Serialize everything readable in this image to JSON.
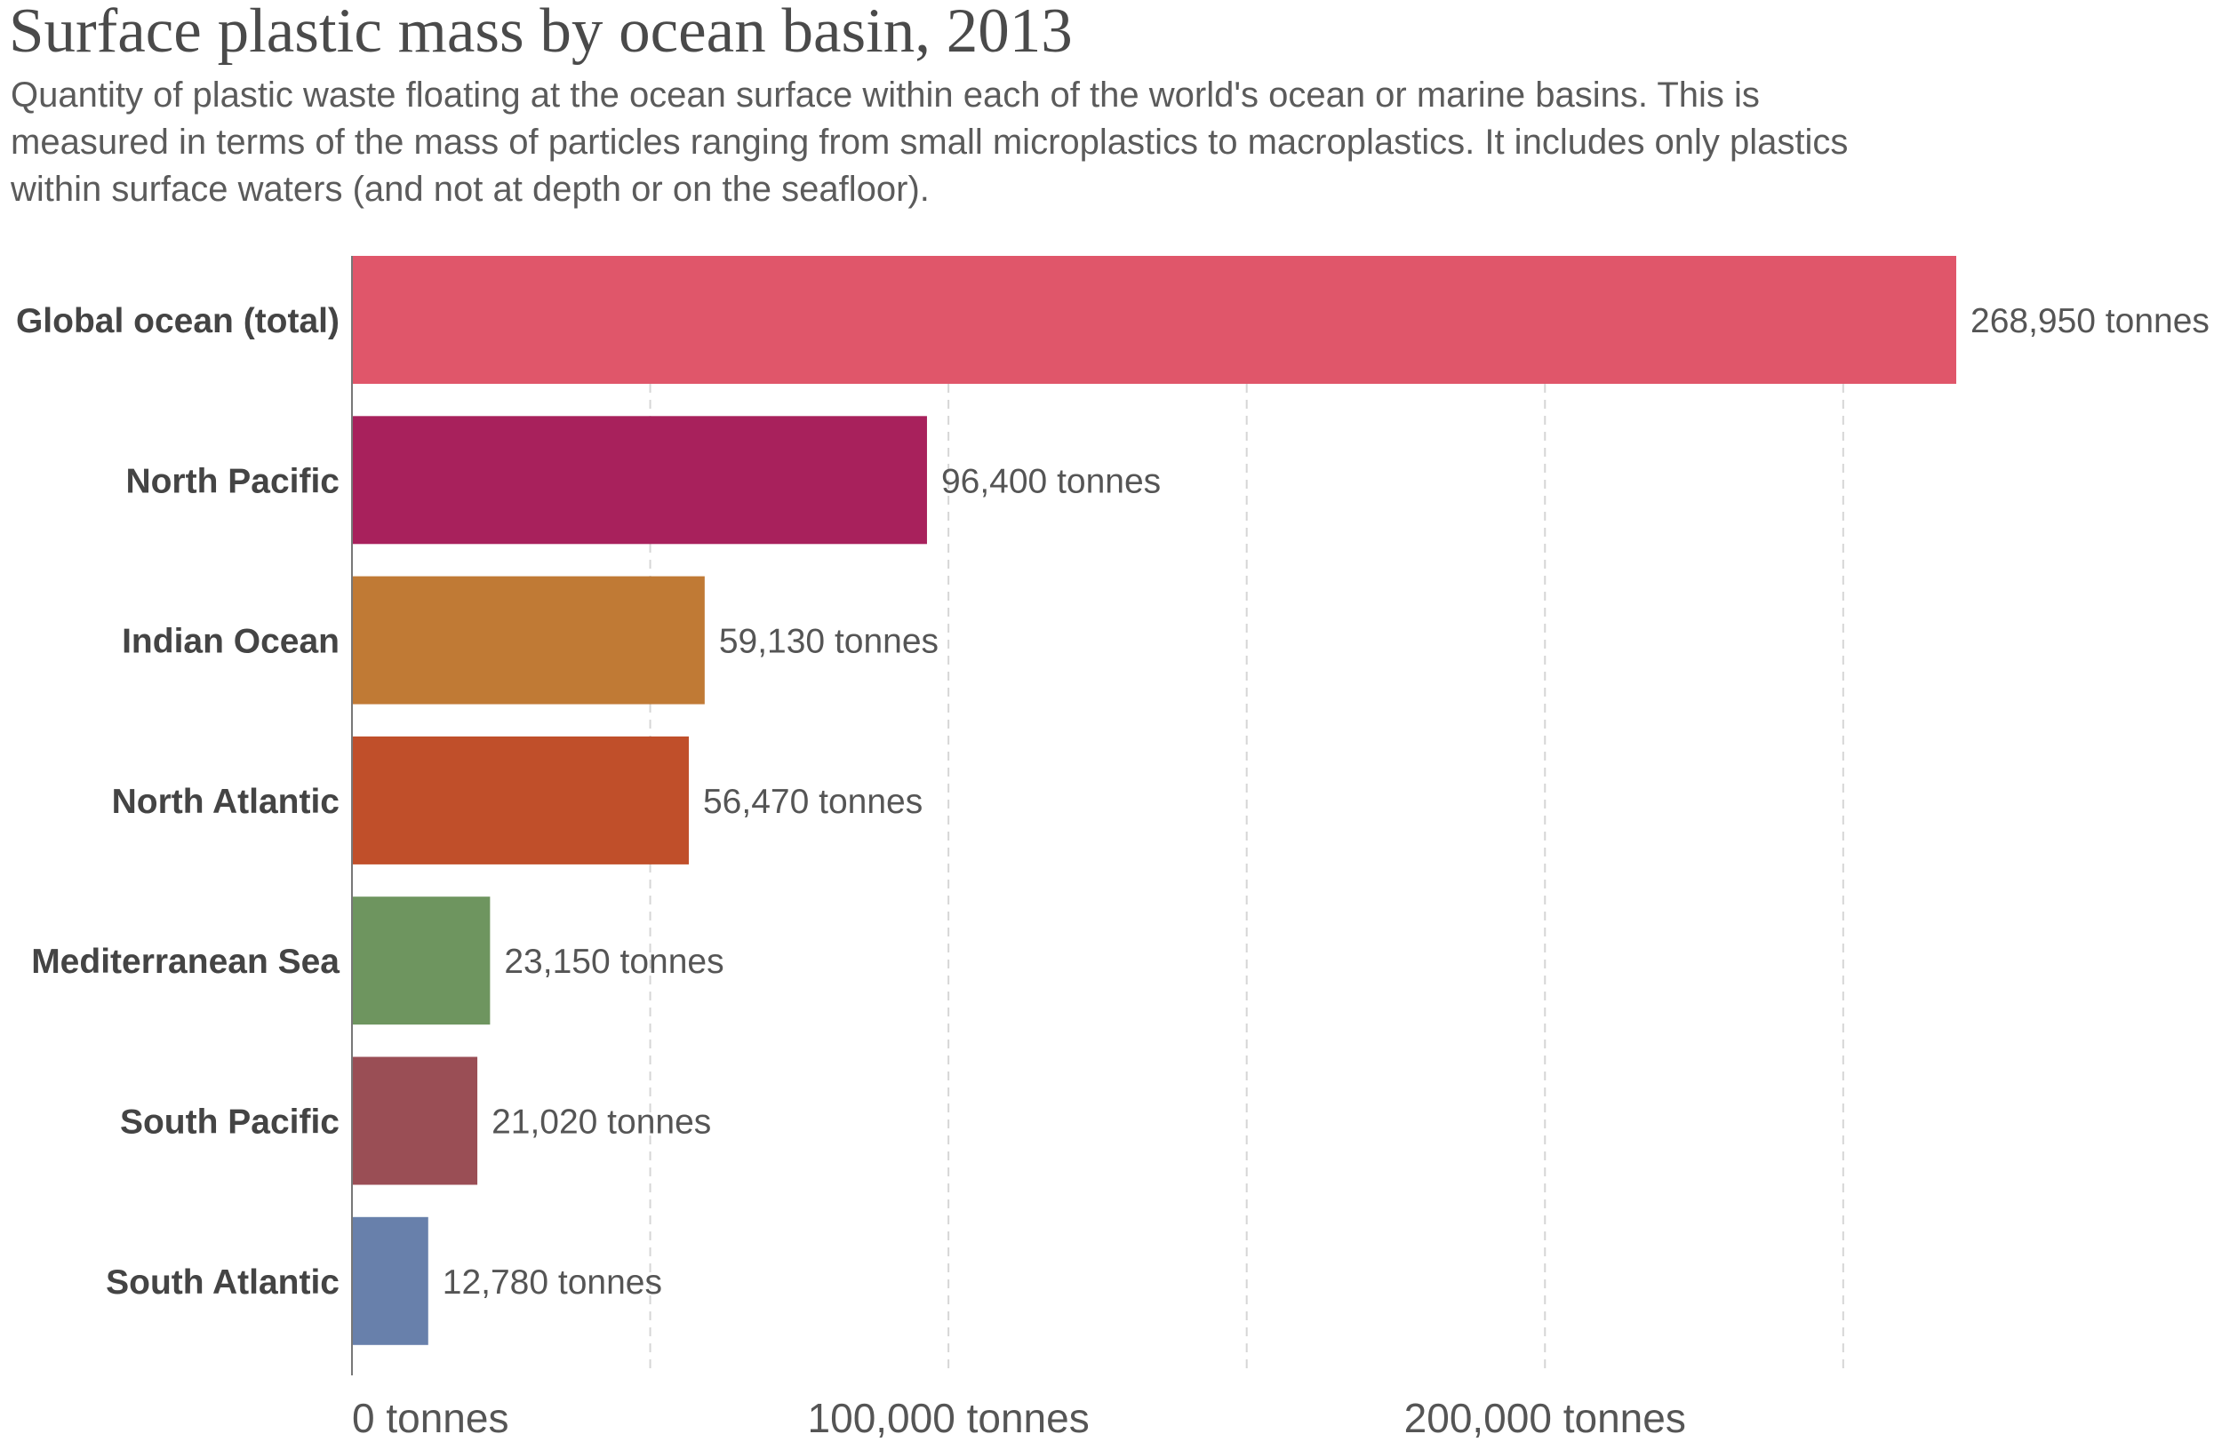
{
  "chart_data": {
    "type": "bar",
    "orientation": "horizontal",
    "title": "Surface plastic mass by ocean basin, 2013",
    "subtitle_lines": [
      "Quantity of plastic waste floating at the ocean surface within each of the world's ocean or marine basins. This is",
      "measured in terms of the mass of particles ranging from small microplastics to macroplastics. It includes only plastics",
      "within surface waters (and not at depth or on the seafloor)."
    ],
    "categories": [
      "Global ocean (total)",
      "North Pacific",
      "Indian Ocean",
      "North Atlantic",
      "Mediterranean Sea",
      "South Pacific",
      "South Atlantic"
    ],
    "values": [
      268950,
      96400,
      59130,
      56470,
      23150,
      21020,
      12780
    ],
    "value_labels": [
      "268,950 tonnes",
      "96,400 tonnes",
      "59,130 tonnes",
      "56,470 tonnes",
      "23,150 tonnes",
      "21,020 tonnes",
      "12,780 tonnes"
    ],
    "colors": [
      "#e0566a",
      "#a8215c",
      "#c07a35",
      "#c04f2a",
      "#6e955f",
      "#9a4e55",
      "#6880ab"
    ],
    "xlim": [
      0,
      300000
    ],
    "gridlines": [
      50000,
      100000,
      150000,
      200000,
      250000
    ],
    "ticks": [
      {
        "value": 0,
        "label": "0 tonnes"
      },
      {
        "value": 100000,
        "label": "100,000 tonnes"
      },
      {
        "value": 200000,
        "label": "200,000 tonnes"
      }
    ],
    "xlabel": "",
    "ylabel": "",
    "grid": true,
    "legend": "none"
  }
}
